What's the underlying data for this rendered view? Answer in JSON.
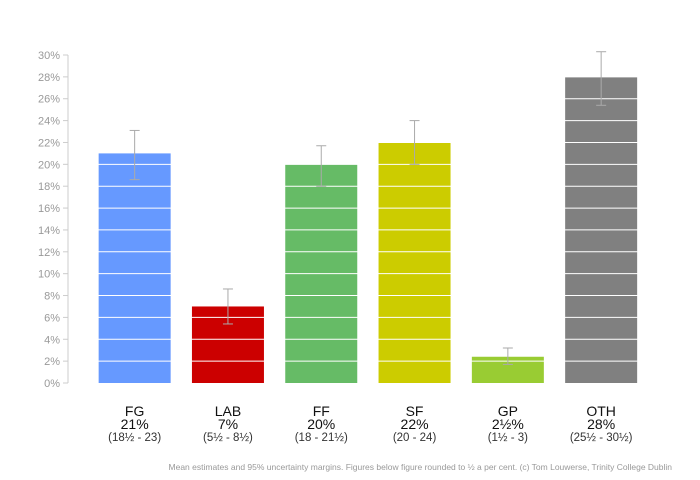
{
  "chart_data": {
    "type": "bar",
    "title": "",
    "xlabel": "",
    "ylabel": "",
    "ylim": [
      0,
      30
    ],
    "y_ticks": [
      "0%",
      "2%",
      "4%",
      "6%",
      "8%",
      "10%",
      "12%",
      "14%",
      "16%",
      "18%",
      "20%",
      "22%",
      "24%",
      "26%",
      "28%",
      "30%"
    ],
    "y_tick_values": [
      0,
      2,
      4,
      6,
      8,
      10,
      12,
      14,
      16,
      18,
      20,
      22,
      24,
      26,
      28,
      30
    ],
    "grid": "horizontal lines drawn in white over bars",
    "bars": [
      {
        "party": "FG",
        "value": 21,
        "lower": 18.6,
        "upper": 23.1,
        "label": "21%",
        "range": "(18½ - 23)",
        "color": "#6699ff"
      },
      {
        "party": "LAB",
        "value": 7,
        "lower": 5.4,
        "upper": 8.6,
        "label": "7%",
        "range": "(5½ - 8½)",
        "color": "#cc0000"
      },
      {
        "party": "FF",
        "value": 20,
        "lower": 18.0,
        "upper": 21.7,
        "label": "20%",
        "range": "(18 - 21½)",
        "color": "#66bb66"
      },
      {
        "party": "SF",
        "value": 22,
        "lower": 20.0,
        "upper": 24.0,
        "label": "22%",
        "range": "(20 - 24)",
        "color": "#cccc00"
      },
      {
        "party": "GP",
        "value": 2.4,
        "lower": 1.7,
        "upper": 3.2,
        "label": "2½%",
        "range": "(1½ - 3)",
        "color": "#99cc33"
      },
      {
        "party": "OTH",
        "value": 28,
        "lower": 25.4,
        "upper": 30.3,
        "label": "28%",
        "range": "(25½ - 30½)",
        "color": "#808080"
      }
    ],
    "error_bar_color": "#aaaaaa",
    "footnote": "Mean estimates and 95% uncertainty margins. Figures below figure rounded to ½ a per cent. (c) Tom Louwerse, Trinity College Dublin"
  }
}
